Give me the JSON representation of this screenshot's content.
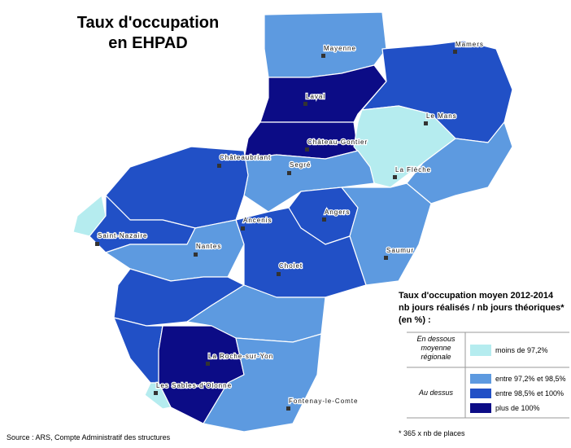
{
  "header": {
    "title_lines": [
      "Taux d'occupation",
      "en EHPAD"
    ]
  },
  "map": {
    "places": [
      "Mayenne",
      "Mamers",
      "Laval",
      "Le Mans",
      "Château-Gontier",
      "Châteaubriant",
      "Segré",
      "La Flèche",
      "Angers",
      "Ancenis",
      "Saint-Nazaire",
      "Nantes",
      "Saumur",
      "Cholet",
      "La Roche-sur-Yon",
      "Les Sables-d'Olonne",
      "Fontenay-le-Comte"
    ]
  },
  "legend": {
    "title_lines": [
      "Taux d'occupation moyen 2012-2014",
      "nb jours réalisés / nb jours théoriques*",
      "(en %) :"
    ],
    "below_label_lines": [
      "En dessous",
      "moyenne",
      "régionale"
    ],
    "above_label": "Au dessus",
    "items": [
      "moins de 97,2%",
      "entre 97,2% et 98,5%",
      "entre 98,5% et 100%",
      "plus de 100%"
    ]
  },
  "footnote": "* 365 x nb de places",
  "source": "Source : ARS, Compte Administratif des structures"
}
